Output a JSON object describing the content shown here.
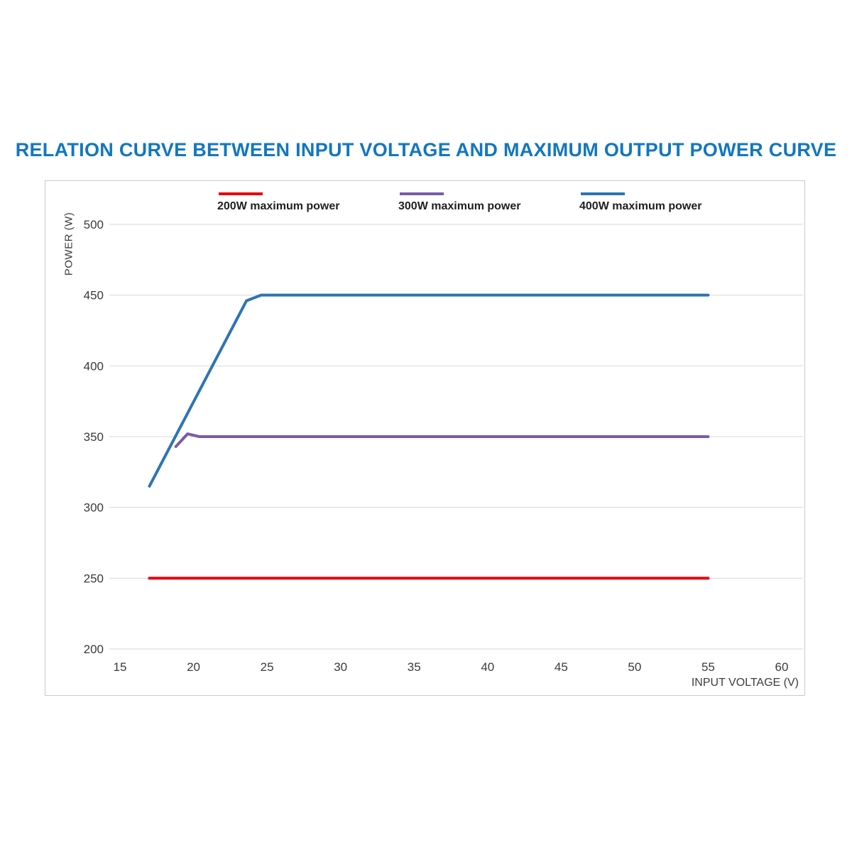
{
  "page": {
    "background": "#ffffff",
    "title_color": "#1277bf"
  },
  "chart_data": {
    "type": "line",
    "title": "RELATION CURVE BETWEEN INPUT VOLTAGE AND MAXIMUM OUTPUT POWER CURVE",
    "xlabel": "INPUT VOLTAGE (V)",
    "ylabel": "POWER (W)",
    "xlim": [
      15,
      60
    ],
    "ylim": [
      200,
      500
    ],
    "xticks": [
      15,
      20,
      25,
      30,
      35,
      40,
      45,
      50,
      55,
      60
    ],
    "yticks": [
      200,
      250,
      300,
      350,
      400,
      450,
      500
    ],
    "grid": "horizontal-only",
    "gridline_color": "#d9d9d9",
    "tick_label_color": "#3b3b3b",
    "legend_position": "top-inside",
    "series": [
      {
        "name": "200W maximum power",
        "color": "#e8000b",
        "points": [
          [
            17,
            250
          ],
          [
            55,
            250
          ]
        ]
      },
      {
        "name": "300W maximum power",
        "color": "#7a5ca5",
        "points": [
          [
            18.8,
            343
          ],
          [
            19.6,
            352
          ],
          [
            20.4,
            350
          ],
          [
            55,
            350
          ]
        ]
      },
      {
        "name": "400W maximum power",
        "color": "#2e74b5",
        "points": [
          [
            17,
            315
          ],
          [
            23.6,
            446
          ],
          [
            24.6,
            450
          ],
          [
            55,
            450
          ]
        ]
      }
    ]
  }
}
